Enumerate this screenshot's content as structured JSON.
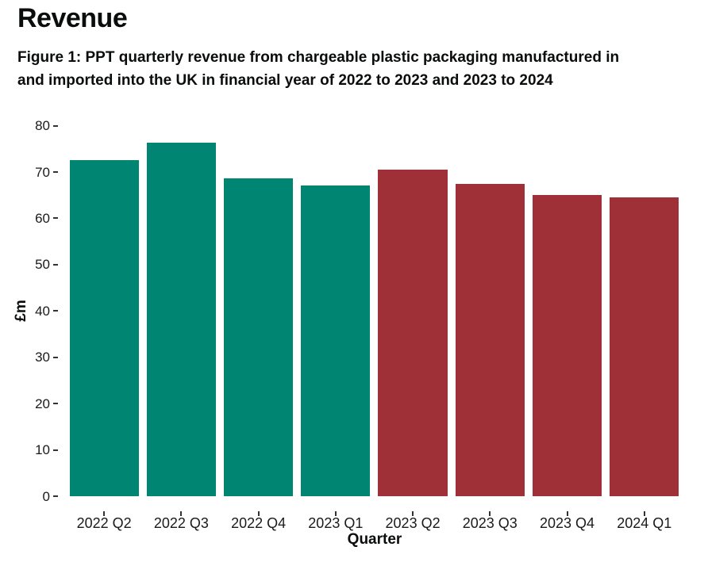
{
  "page": {
    "title": "Revenue",
    "caption_lines": [
      "Figure 1: PPT quarterly revenue from chargeable plastic packaging manufactured in",
      "and imported into the UK in financial year of 2022 to 2023 and 2023 to 2024"
    ]
  },
  "chart_data": {
    "type": "bar",
    "title": "Figure 1: PPT quarterly revenue from chargeable plastic packaging manufactured in and imported into the UK in financial year of 2022 to 2023 and 2023 to 2024",
    "xlabel": "Quarter",
    "ylabel": "£m",
    "categories": [
      "2022 Q2",
      "2022 Q3",
      "2022 Q4",
      "2023 Q1",
      "2023 Q2",
      "2023 Q3",
      "2023 Q4",
      "2024 Q1"
    ],
    "values": [
      72.6,
      76.3,
      68.6,
      67.1,
      70.6,
      67.5,
      65.1,
      64.6
    ],
    "bar_colors": [
      "#008573",
      "#008573",
      "#008573",
      "#008573",
      "#A03038",
      "#A03038",
      "#A03038",
      "#A03038"
    ],
    "color_teal": "#008573",
    "color_red": "#A03038",
    "ylim": [
      0,
      80
    ],
    "yticks": [
      0,
      10,
      20,
      30,
      40,
      50,
      60,
      70,
      80
    ],
    "grid": false,
    "legend": "none"
  }
}
